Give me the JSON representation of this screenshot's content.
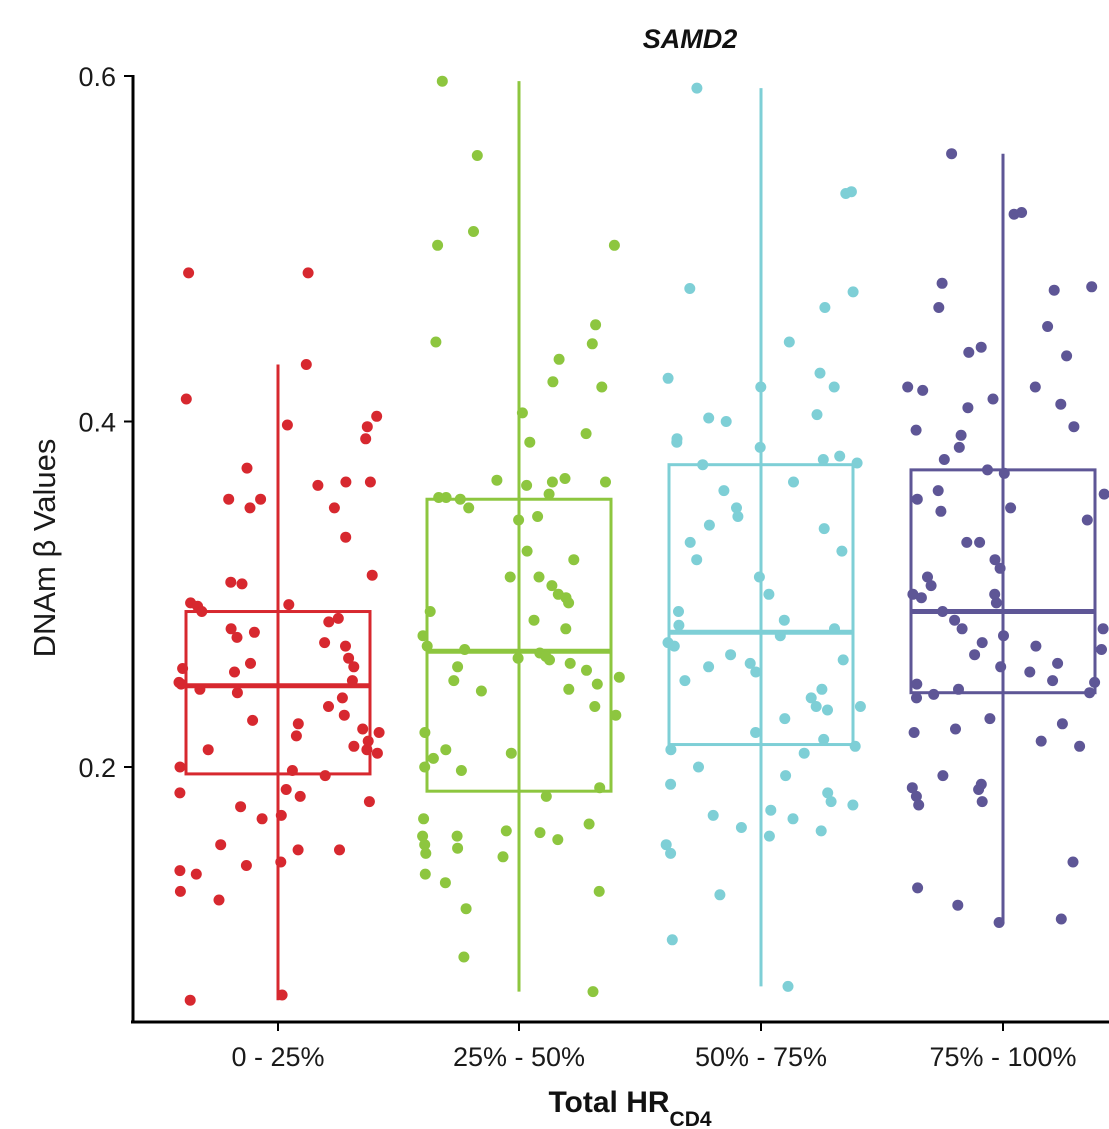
{
  "chart_data": {
    "type": "box",
    "title": "SAMD2",
    "ylabel": "DNAm β Values",
    "xlabel_main": "Total HR",
    "xlabel_sub": "CD4",
    "ylim": [
      0.055,
      0.6
    ],
    "yticks": [
      {
        "value": 0.2,
        "label": "0.2"
      },
      {
        "value": 0.4,
        "label": "0.4"
      },
      {
        "value": 0.6,
        "label": "0.6"
      }
    ],
    "grid": false,
    "legend": "none",
    "groups": [
      {
        "category": "0 - 25%",
        "color": "#d7282f",
        "whisker_low": 0.065,
        "q1": 0.196,
        "median": 0.247,
        "q3": 0.29,
        "whisker_high": 0.433,
        "points": [
          0.486,
          0.486,
          0.433,
          0.413,
          0.403,
          0.397,
          0.398,
          0.39,
          0.373,
          0.365,
          0.365,
          0.355,
          0.355,
          0.35,
          0.35,
          0.363,
          0.333,
          0.311,
          0.307,
          0.306,
          0.295,
          0.294,
          0.293,
          0.29,
          0.286,
          0.284,
          0.28,
          0.278,
          0.275,
          0.272,
          0.27,
          0.263,
          0.26,
          0.258,
          0.257,
          0.255,
          0.25,
          0.249,
          0.248,
          0.245,
          0.243,
          0.24,
          0.235,
          0.23,
          0.227,
          0.225,
          0.222,
          0.22,
          0.218,
          0.215,
          0.212,
          0.21,
          0.21,
          0.208,
          0.2,
          0.198,
          0.195,
          0.187,
          0.185,
          0.183,
          0.18,
          0.177,
          0.172,
          0.17,
          0.155,
          0.152,
          0.152,
          0.145,
          0.143,
          0.14,
          0.138,
          0.128,
          0.123,
          0.068,
          0.065
        ]
      },
      {
        "category": "25% - 50%",
        "color": "#8dc63f",
        "whisker_low": 0.07,
        "q1": 0.186,
        "median": 0.267,
        "q3": 0.355,
        "whisker_high": 0.597,
        "points": [
          0.597,
          0.554,
          0.51,
          0.502,
          0.502,
          0.456,
          0.446,
          0.445,
          0.436,
          0.423,
          0.42,
          0.405,
          0.393,
          0.388,
          0.367,
          0.366,
          0.365,
          0.365,
          0.363,
          0.358,
          0.356,
          0.356,
          0.355,
          0.35,
          0.345,
          0.343,
          0.325,
          0.32,
          0.31,
          0.31,
          0.305,
          0.3,
          0.298,
          0.295,
          0.29,
          0.285,
          0.28,
          0.276,
          0.27,
          0.268,
          0.266,
          0.264,
          0.263,
          0.262,
          0.26,
          0.258,
          0.256,
          0.252,
          0.25,
          0.248,
          0.245,
          0.244,
          0.235,
          0.23,
          0.22,
          0.21,
          0.208,
          0.205,
          0.2,
          0.198,
          0.188,
          0.183,
          0.17,
          0.167,
          0.163,
          0.162,
          0.16,
          0.16,
          0.158,
          0.155,
          0.153,
          0.15,
          0.148,
          0.138,
          0.133,
          0.128,
          0.118,
          0.09,
          0.07
        ]
      },
      {
        "category": "50% - 75%",
        "color": "#7ecfd6",
        "whisker_low": 0.073,
        "q1": 0.213,
        "median": 0.278,
        "q3": 0.375,
        "whisker_high": 0.593,
        "points": [
          0.593,
          0.533,
          0.532,
          0.477,
          0.475,
          0.466,
          0.446,
          0.428,
          0.425,
          0.42,
          0.42,
          0.404,
          0.402,
          0.4,
          0.39,
          0.388,
          0.385,
          0.38,
          0.378,
          0.376,
          0.375,
          0.365,
          0.36,
          0.35,
          0.345,
          0.34,
          0.338,
          0.33,
          0.325,
          0.32,
          0.31,
          0.3,
          0.29,
          0.285,
          0.282,
          0.28,
          0.276,
          0.272,
          0.27,
          0.265,
          0.262,
          0.26,
          0.258,
          0.255,
          0.25,
          0.245,
          0.24,
          0.235,
          0.235,
          0.233,
          0.228,
          0.22,
          0.216,
          0.212,
          0.21,
          0.208,
          0.2,
          0.195,
          0.19,
          0.185,
          0.18,
          0.178,
          0.175,
          0.172,
          0.17,
          0.165,
          0.163,
          0.16,
          0.155,
          0.15,
          0.126,
          0.1,
          0.073
        ]
      },
      {
        "category": "75% - 100%",
        "color": "#5e5696",
        "whisker_low": 0.11,
        "q1": 0.243,
        "median": 0.29,
        "q3": 0.372,
        "whisker_high": 0.555,
        "points": [
          0.555,
          0.521,
          0.52,
          0.48,
          0.478,
          0.476,
          0.466,
          0.455,
          0.443,
          0.44,
          0.438,
          0.42,
          0.42,
          0.418,
          0.413,
          0.41,
          0.408,
          0.397,
          0.395,
          0.392,
          0.385,
          0.378,
          0.372,
          0.37,
          0.36,
          0.358,
          0.355,
          0.35,
          0.348,
          0.343,
          0.33,
          0.33,
          0.32,
          0.315,
          0.31,
          0.305,
          0.3,
          0.3,
          0.298,
          0.295,
          0.29,
          0.285,
          0.28,
          0.28,
          0.276,
          0.272,
          0.27,
          0.268,
          0.265,
          0.26,
          0.258,
          0.255,
          0.25,
          0.249,
          0.248,
          0.245,
          0.243,
          0.242,
          0.24,
          0.228,
          0.225,
          0.222,
          0.22,
          0.215,
          0.212,
          0.195,
          0.19,
          0.188,
          0.187,
          0.183,
          0.18,
          0.178,
          0.145,
          0.13,
          0.12,
          0.112,
          0.11
        ]
      }
    ]
  }
}
